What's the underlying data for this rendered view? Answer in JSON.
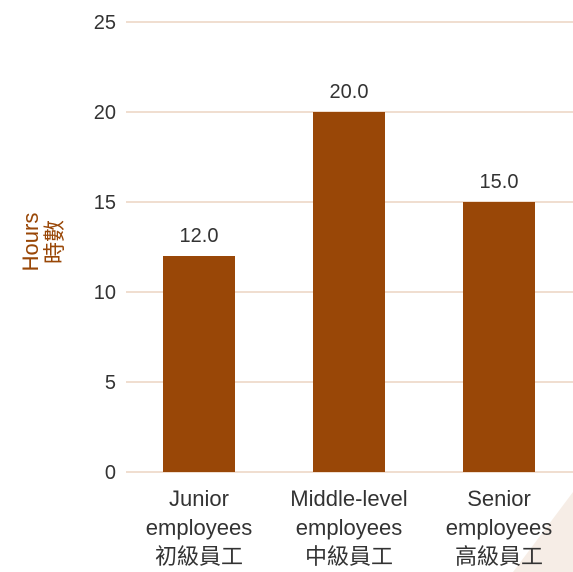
{
  "chart_data": {
    "type": "bar",
    "ylabel": [
      "Hours",
      "時數"
    ],
    "ylim": [
      0,
      25
    ],
    "yticks": [
      0,
      5,
      10,
      15,
      20,
      25
    ],
    "categories": [
      [
        "Junior",
        "employees",
        "初級員工"
      ],
      [
        "Middle-level",
        "employees",
        "中級員工"
      ],
      [
        "Senior",
        "employees",
        "高級員工"
      ]
    ],
    "values": [
      12.0,
      20.0,
      15.0
    ],
    "value_labels": [
      "12.0",
      "20.0",
      "15.0"
    ],
    "grid": true,
    "colors": {
      "bar": "#994707",
      "grid": "#e6c9b3",
      "text": "#333333",
      "ylabel": "#994707"
    }
  }
}
